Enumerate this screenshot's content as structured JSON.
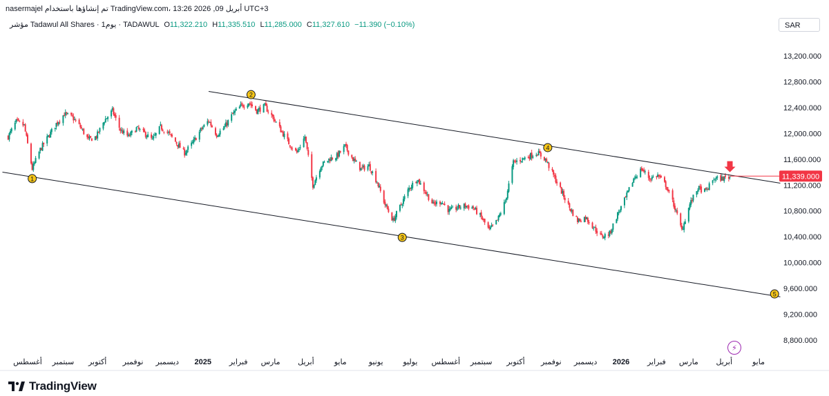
{
  "header": {
    "publish_line": "nasermajel تم إنشاؤها باستخدام TradingView.com، 13:26 2026 ,09 أبريل UTC+3"
  },
  "legend": {
    "symbol": "مؤشر Tadawul All Shares · 1يوم · TADAWUL",
    "open_label": "O",
    "open": "11,322.210",
    "high_label": "H",
    "high": "11,335.510",
    "low_label": "L",
    "low": "11,285.000",
    "close_label": "C",
    "close": "11,327.610",
    "change": "−11.390 (−0.10%)"
  },
  "currency": "SAR",
  "price_tag": "11,339.000",
  "brand": "TradingView",
  "icons": {
    "logo": "tradingview-logo-icon",
    "alert": "lightning-icon"
  },
  "colors": {
    "up": "#089981",
    "down": "#f23645",
    "marker": "#f5c518",
    "axis_text": "#131722"
  },
  "chart_data": {
    "type": "candlestick",
    "symbol": "Tadawul All Shares",
    "interval": "1D",
    "currency": "SAR",
    "ylim": [
      8600,
      13600
    ],
    "y_ticks": [
      8800,
      9200,
      9600,
      10000,
      10400,
      10800,
      11200,
      11600,
      12000,
      12400,
      12800,
      13200
    ],
    "y_tick_labels": [
      "8,800.000",
      "9,200.000",
      "9,600.000",
      "10,000.000",
      "10,400.000",
      "10,800.000",
      "11,200.000",
      "11,600.000",
      "12,000.000",
      "12,400.000",
      "12,800.000",
      "13,200.000"
    ],
    "x_ticks": [
      {
        "label": "أغسطس",
        "date": "2024-08-01"
      },
      {
        "label": "سبتمبر",
        "date": "2024-09-01"
      },
      {
        "label": "أكتوبر",
        "date": "2024-10-01"
      },
      {
        "label": "نوفمبر",
        "date": "2024-11-01"
      },
      {
        "label": "ديسمبر",
        "date": "2024-12-01"
      },
      {
        "label": "2025",
        "date": "2025-01-01",
        "bold": true
      },
      {
        "label": "فبراير",
        "date": "2025-02-01"
      },
      {
        "label": "مارس",
        "date": "2025-03-01"
      },
      {
        "label": "أبريل",
        "date": "2025-04-01"
      },
      {
        "label": "مايو",
        "date": "2025-05-01"
      },
      {
        "label": "يونيو",
        "date": "2025-06-01"
      },
      {
        "label": "يوليو",
        "date": "2025-07-01"
      },
      {
        "label": "أغسطس",
        "date": "2025-08-01"
      },
      {
        "label": "سبتمبر",
        "date": "2025-09-01"
      },
      {
        "label": "أكتوبر",
        "date": "2025-10-01"
      },
      {
        "label": "نوفمبر",
        "date": "2025-11-01"
      },
      {
        "label": "ديسمبر",
        "date": "2025-12-01"
      },
      {
        "label": "2026",
        "date": "2026-01-01",
        "bold": true
      },
      {
        "label": "فبراير",
        "date": "2026-02-01"
      },
      {
        "label": "مارس",
        "date": "2026-03-01"
      },
      {
        "label": "أبريل",
        "date": "2026-04-01"
      },
      {
        "label": "مايو",
        "date": "2026-05-01"
      }
    ],
    "close_path": [
      [
        "2024-07-15",
        11950
      ],
      [
        "2024-07-22",
        12180
      ],
      [
        "2024-07-29",
        12120
      ],
      [
        "2024-08-05",
        11450
      ],
      [
        "2024-08-12",
        11750
      ],
      [
        "2024-08-19",
        11950
      ],
      [
        "2024-08-26",
        12150
      ],
      [
        "2024-09-02",
        12300
      ],
      [
        "2024-09-09",
        12250
      ],
      [
        "2024-09-16",
        12100
      ],
      [
        "2024-09-23",
        11900
      ],
      [
        "2024-09-30",
        11950
      ],
      [
        "2024-10-07",
        12200
      ],
      [
        "2024-10-14",
        12350
      ],
      [
        "2024-10-21",
        12050
      ],
      [
        "2024-10-28",
        11950
      ],
      [
        "2024-11-04",
        12080
      ],
      [
        "2024-11-11",
        12000
      ],
      [
        "2024-11-18",
        11900
      ],
      [
        "2024-11-25",
        12100
      ],
      [
        "2024-12-02",
        12000
      ],
      [
        "2024-12-09",
        11850
      ],
      [
        "2024-12-16",
        11700
      ],
      [
        "2024-12-23",
        11850
      ],
      [
        "2024-12-30",
        12050
      ],
      [
        "2025-01-06",
        12200
      ],
      [
        "2025-01-13",
        11980
      ],
      [
        "2025-01-20",
        12100
      ],
      [
        "2025-01-27",
        12300
      ],
      [
        "2025-02-03",
        12420
      ],
      [
        "2025-02-10",
        12480
      ],
      [
        "2025-02-17",
        12350
      ],
      [
        "2025-02-24",
        12420
      ],
      [
        "2025-03-03",
        12250
      ],
      [
        "2025-03-10",
        12050
      ],
      [
        "2025-03-17",
        11850
      ],
      [
        "2025-03-24",
        11700
      ],
      [
        "2025-03-31",
        11950
      ],
      [
        "2025-04-07",
        11200
      ],
      [
        "2025-04-14",
        11500
      ],
      [
        "2025-04-21",
        11600
      ],
      [
        "2025-04-28",
        11650
      ],
      [
        "2025-05-05",
        11800
      ],
      [
        "2025-05-12",
        11600
      ],
      [
        "2025-05-19",
        11450
      ],
      [
        "2025-05-26",
        11500
      ],
      [
        "2025-06-02",
        11250
      ],
      [
        "2025-06-09",
        10900
      ],
      [
        "2025-06-16",
        10650
      ],
      [
        "2025-06-23",
        10900
      ],
      [
        "2025-06-30",
        11150
      ],
      [
        "2025-07-07",
        11300
      ],
      [
        "2025-07-14",
        11100
      ],
      [
        "2025-07-21",
        10900
      ],
      [
        "2025-07-28",
        10950
      ],
      [
        "2025-08-04",
        10800
      ],
      [
        "2025-08-11",
        10850
      ],
      [
        "2025-08-18",
        10880
      ],
      [
        "2025-08-25",
        10850
      ],
      [
        "2025-09-01",
        10700
      ],
      [
        "2025-09-08",
        10500
      ],
      [
        "2025-09-15",
        10650
      ],
      [
        "2025-09-22",
        10950
      ],
      [
        "2025-09-29",
        11550
      ],
      [
        "2025-10-06",
        11600
      ],
      [
        "2025-10-13",
        11650
      ],
      [
        "2025-10-20",
        11700
      ],
      [
        "2025-10-27",
        11600
      ],
      [
        "2025-11-03",
        11350
      ],
      [
        "2025-11-10",
        11100
      ],
      [
        "2025-11-17",
        10850
      ],
      [
        "2025-11-24",
        10650
      ],
      [
        "2025-12-01",
        10700
      ],
      [
        "2025-12-08",
        10550
      ],
      [
        "2025-12-15",
        10400
      ],
      [
        "2025-12-22",
        10450
      ],
      [
        "2025-12-29",
        10750
      ],
      [
        "2026-01-05",
        11000
      ],
      [
        "2026-01-12",
        11300
      ],
      [
        "2026-01-19",
        11450
      ],
      [
        "2026-01-26",
        11300
      ],
      [
        "2026-02-02",
        11350
      ],
      [
        "2026-02-09",
        11200
      ],
      [
        "2026-02-16",
        10900
      ],
      [
        "2026-02-23",
        10500
      ],
      [
        "2026-03-02",
        10900
      ],
      [
        "2026-03-09",
        11150
      ],
      [
        "2026-03-16",
        11100
      ],
      [
        "2026-03-23",
        11300
      ],
      [
        "2026-03-30",
        11300
      ],
      [
        "2026-04-06",
        11327.61
      ]
    ],
    "last_bar": {
      "open": 11322.21,
      "high": 11335.51,
      "low": 11285.0,
      "close": 11327.61
    },
    "trendlines": [
      {
        "name": "upper",
        "from": [
          "2025-01-06",
          12650
        ],
        "to": [
          "2026-05-20",
          11230
        ]
      },
      {
        "name": "lower",
        "from": [
          "2024-07-10",
          11400
        ],
        "to": [
          "2026-05-20",
          9470
        ]
      }
    ],
    "horizontal_line": {
      "value": 11339.0,
      "from": "2026-04-06"
    },
    "wave_labels": [
      {
        "label": "1",
        "date": "2024-08-05",
        "value": 11300
      },
      {
        "label": "2",
        "date": "2025-02-12",
        "value": 12600
      },
      {
        "label": "3",
        "date": "2025-06-24",
        "value": 10390
      },
      {
        "label": "4",
        "date": "2025-10-29",
        "value": 11780
      },
      {
        "label": "5",
        "date": "2026-05-15",
        "value": 9515
      }
    ],
    "arrow": {
      "date": "2026-04-06",
      "value": 11420,
      "direction": "down"
    }
  }
}
